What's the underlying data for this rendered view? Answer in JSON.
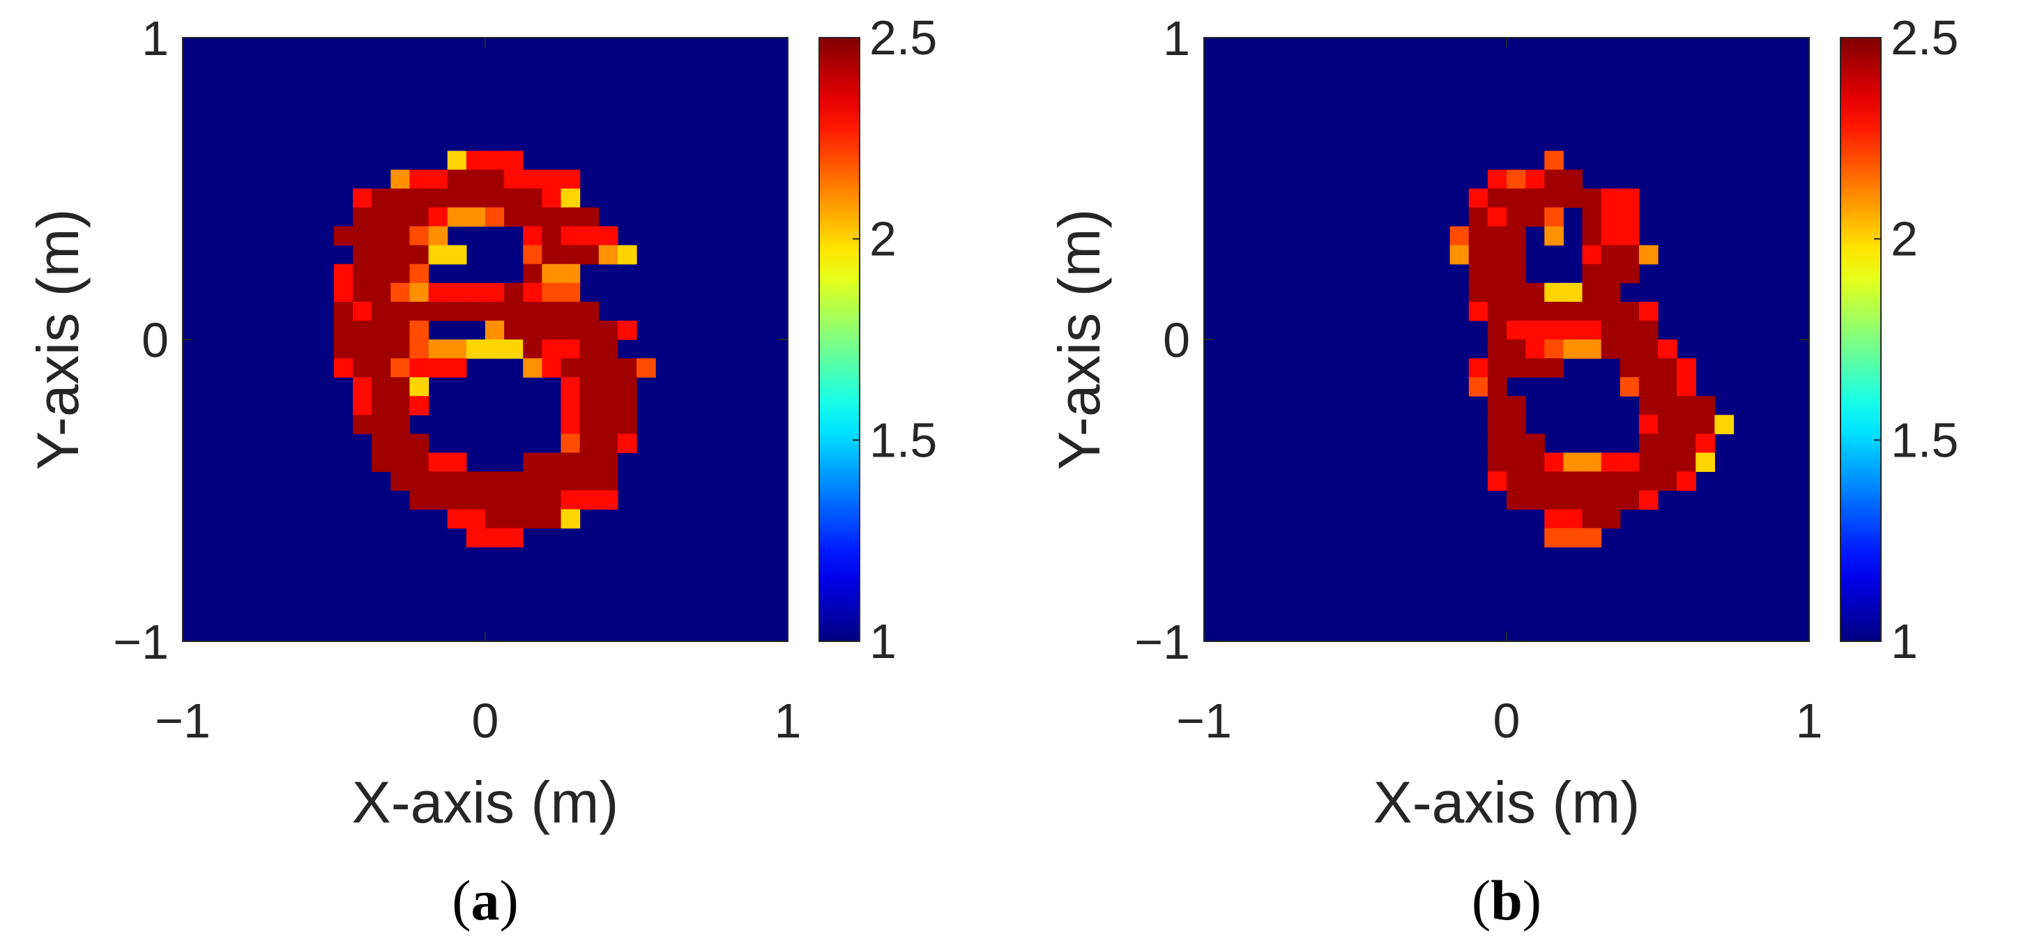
{
  "chart_data": [
    {
      "type": "heatmap",
      "caption_prefix": "(",
      "caption_letter": "a",
      "caption_suffix": ")",
      "xlabel": "X-axis (m)",
      "ylabel": "Y-axis (m)",
      "xlim": [
        -1,
        1
      ],
      "ylim": [
        -1,
        1
      ],
      "xticks": [
        "−1",
        "0",
        "1"
      ],
      "yticks": [
        "−1",
        "0",
        "1"
      ],
      "colorbar": {
        "clim": [
          1,
          2.5
        ],
        "ticks": [
          "1",
          "1.5",
          "2",
          "2.5"
        ],
        "colormap": "jet"
      },
      "grid_shape": [
        32,
        32
      ],
      "background_value": 1,
      "rows_top_to_bottom": [
        "................................",
        "................................",
        "................................",
        "................................",
        "................................",
        "................................",
        "..............5888..............",
        "...........6889998888...........",
        ".........899999999985...........",
        ".........9999866799999..........",
        "........999976....89888.........",
        ".........999955...799965........",
        "........89997.....966...........",
        "........8997688889877...........",
        "........98999999999999..........",
        "........99997...69999998........",
        "........999976655598899.........",
        "........8997888...6899997.......",
        ".........8995.......8999........",
        ".........8998.......8999........",
        ".........999........8999........",
        "..........999.......7998........",
        "..........99988...99999.........",
        "...........999999999999.........",
        "............99999999888.........",
        "..............8899995...........",
        "...............888..............",
        "................................",
        "................................",
        "................................",
        "................................",
        "................................"
      ]
    },
    {
      "type": "heatmap",
      "caption_prefix": "(",
      "caption_letter": "b",
      "caption_suffix": ")",
      "xlabel": "X-axis (m)",
      "ylabel": "Y-axis (m)",
      "xlim": [
        -1,
        1
      ],
      "ylim": [
        -1,
        1
      ],
      "xticks": [
        "−1",
        "0",
        "1"
      ],
      "yticks": [
        "−1",
        "0",
        "1"
      ],
      "colorbar": {
        "clim": [
          1,
          2.5
        ],
        "ticks": [
          "1",
          "1.5",
          "2",
          "2.5"
        ],
        "colormap": "jet"
      },
      "grid_shape": [
        32,
        32
      ],
      "background_value": 1,
      "rows_top_to_bottom": [
        "................................",
        "................................",
        "................................",
        "................................",
        "................................",
        "................................",
        "..................7.............",
        "...............87899............",
        "..............899999988.........",
        "..............98997.988.........",
        ".............7999.6.988.........",
        ".............6999...8996........",
        "..............999...999.........",
        "..............99995599..........",
        "..............8999999998........",
        "...............988888999........",
        "...............9987669998.......",
        "..............89999...9998......",
        "..............79......7998......",
        "...............99......9999.....",
        "...............99......89995....",
        "...............999.....9998.....",
        "...............999866889995.....",
        "...............89999999998......",
        "................99999998........",
        "..................8899..........",
        "..................777...........",
        "................................",
        "................................",
        "................................",
        "................................",
        "................................"
      ]
    }
  ]
}
